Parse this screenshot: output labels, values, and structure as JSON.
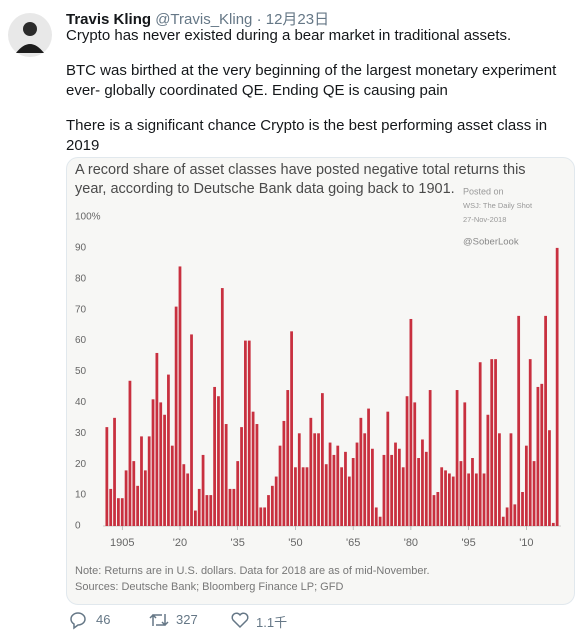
{
  "tweet": {
    "author_name": "Travis Kling",
    "handle": "@Travis_Kling",
    "separator": "·",
    "date": "12月23日",
    "paragraphs": [
      "Crypto has never existed during a bear market in traditional assets.",
      "BTC was birthed at the very beginning of the largest monetary experiment ever- globally coordinated QE. Ending QE is causing pain",
      "There is a significant chance Crypto is the best performing asset class in 2019"
    ]
  },
  "chart_data": {
    "type": "bar",
    "title": "A record share of asset classes have posted negative total returns this year, according to Deutsche Bank data going back to 1901.",
    "annotations": [
      "Posted on",
      "WSJ: The Daily Shot",
      "27-Nov-2018",
      "@SoberLook"
    ],
    "note": "Note: Returns are in U.S. dollars. Data for 2018 are as of mid-November.",
    "source": "Sources: Deutsche Bank; Bloomberg Finance LP; GFD",
    "color": "#c8303f",
    "x": [
      1901,
      1902,
      1903,
      1904,
      1905,
      1906,
      1907,
      1908,
      1909,
      1910,
      1911,
      1912,
      1913,
      1914,
      1915,
      1916,
      1917,
      1918,
      1919,
      1920,
      1921,
      1922,
      1923,
      1924,
      1925,
      1926,
      1927,
      1928,
      1929,
      1930,
      1931,
      1932,
      1933,
      1934,
      1935,
      1936,
      1937,
      1938,
      1939,
      1940,
      1941,
      1942,
      1943,
      1944,
      1945,
      1946,
      1947,
      1948,
      1949,
      1950,
      1951,
      1952,
      1953,
      1954,
      1955,
      1956,
      1957,
      1958,
      1959,
      1960,
      1961,
      1962,
      1963,
      1964,
      1965,
      1966,
      1967,
      1968,
      1969,
      1970,
      1971,
      1972,
      1973,
      1974,
      1975,
      1976,
      1977,
      1978,
      1979,
      1980,
      1981,
      1982,
      1983,
      1984,
      1985,
      1986,
      1987,
      1988,
      1989,
      1990,
      1991,
      1992,
      1993,
      1994,
      1995,
      1996,
      1997,
      1998,
      1999,
      2000,
      2001,
      2002,
      2003,
      2004,
      2005,
      2006,
      2007,
      2008,
      2009,
      2010,
      2011,
      2012,
      2013,
      2014,
      2015,
      2016,
      2017,
      2018
    ],
    "values": [
      32,
      12,
      35,
      9,
      9,
      18,
      47,
      21,
      13,
      29,
      18,
      29,
      41,
      56,
      40,
      36,
      49,
      26,
      71,
      84,
      20,
      17,
      62,
      5,
      12,
      23,
      10,
      10,
      45,
      42,
      77,
      33,
      12,
      12,
      21,
      32,
      60,
      60,
      37,
      33,
      6,
      6,
      10,
      13,
      16,
      26,
      34,
      44,
      63,
      19,
      30,
      19,
      19,
      35,
      30,
      30,
      43,
      20,
      27,
      23,
      26,
      19,
      24,
      16,
      22,
      27,
      35,
      30,
      38,
      25,
      6,
      3,
      23,
      37,
      23,
      27,
      25,
      19,
      42,
      67,
      40,
      22,
      28,
      24,
      44,
      10,
      11,
      19,
      18,
      17,
      16,
      44,
      21,
      40,
      17,
      22,
      17,
      53,
      17,
      36,
      54,
      54,
      30,
      3,
      6,
      30,
      7,
      68,
      11,
      26,
      54,
      21,
      45,
      46,
      68,
      31,
      1,
      90
    ],
    "xlim": [
      1900,
      2019
    ],
    "xticks": [
      1905,
      {
        "value": 1920,
        "label": "'20"
      },
      {
        "value": 1935,
        "label": "'35"
      },
      {
        "value": 1950,
        "label": "'50"
      },
      {
        "value": 1965,
        "label": "'65"
      },
      {
        "value": 1980,
        "label": "'80"
      },
      {
        "value": 1995,
        "label": "'95"
      },
      {
        "value": 2010,
        "label": "'10"
      }
    ],
    "ylim": [
      0,
      100
    ],
    "yticks": [
      0,
      10,
      20,
      30,
      40,
      50,
      60,
      70,
      80,
      90,
      {
        "value": 100,
        "label": "100%"
      }
    ],
    "grid": false
  },
  "actions": {
    "replies": 46,
    "retweets": 327,
    "likes": "1.1千"
  }
}
